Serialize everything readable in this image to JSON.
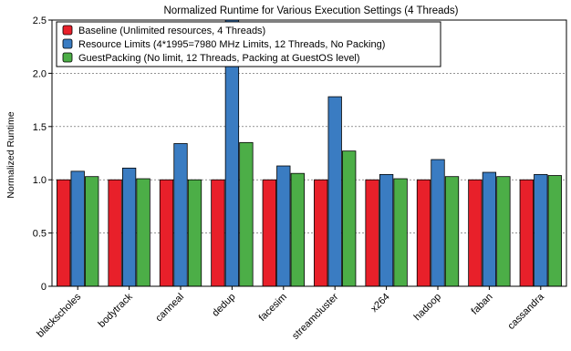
{
  "chart_data": {
    "type": "bar",
    "title": "Normalized Runtime for Various Execution Settings (4 Threads)",
    "xlabel": "",
    "ylabel": "Normalized Runtime",
    "ylim": [
      0,
      2.5
    ],
    "yticks": [
      "0",
      "0.5",
      "1.0",
      "1.5",
      "2.0",
      "2.5"
    ],
    "grid": "horizontal dashed",
    "legend_position": "top-left",
    "categories": [
      "blackscholes",
      "bodytrack",
      "canneal",
      "dedup",
      "facesim",
      "streamcluster",
      "x264",
      "hadoop",
      "faban",
      "cassandra"
    ],
    "series": [
      {
        "name": "Baseline (Unlimited resources, 4 Threads)",
        "color": "#e8202a",
        "values": [
          1.0,
          1.0,
          1.0,
          1.0,
          1.0,
          1.0,
          1.0,
          1.0,
          1.0,
          1.0
        ]
      },
      {
        "name": "Resource Limits (4*1995=7980 MHz Limits, 12 Threads, No Packing)",
        "color": "#3a7cc2",
        "values": [
          1.08,
          1.11,
          1.34,
          2.55,
          1.13,
          1.78,
          1.05,
          1.19,
          1.07,
          1.05
        ]
      },
      {
        "name": "GuestPacking (No limit, 12 Threads, Packing at GuestOS level)",
        "color": "#4cae47",
        "values": [
          1.03,
          1.01,
          1.0,
          1.35,
          1.06,
          1.27,
          1.01,
          1.03,
          1.03,
          1.04
        ]
      }
    ]
  }
}
